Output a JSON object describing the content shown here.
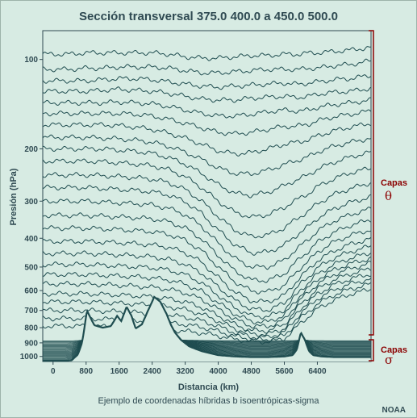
{
  "chart_data": {
    "type": "line",
    "title": "Sección transversal 375.0 400.0 a 450.0 500.0",
    "xlabel": "Distancia (km)",
    "ylabel": "Presión (hPa)",
    "caption": "Ejemplo de coordenadas híbridas b isoentrópicas-sigma",
    "credit": "NOAA",
    "xlim": [
      -250,
      7700
    ],
    "ylim": [
      1040,
      80
    ],
    "y_scale": "log",
    "x_ticks": [
      "0",
      "800",
      "1600",
      "2400",
      "3200",
      "4000",
      "4800",
      "5600",
      "6400"
    ],
    "y_ticks": [
      "100",
      "200",
      "300",
      "400",
      "500",
      "600",
      "700",
      "800",
      "900",
      "1000"
    ],
    "layer_groups": [
      {
        "label": "Capas",
        "symbol": "θ",
        "color": "#8b0000"
      },
      {
        "label": "Capas",
        "symbol": "σ",
        "color": "#8b0000"
      }
    ],
    "line_color": "#1f4d50",
    "terrain": {
      "x": [
        -250,
        300,
        450,
        600,
        700,
        820,
        1000,
        1200,
        1400,
        1550,
        1650,
        1780,
        1900,
        2000,
        2150,
        2300,
        2450,
        2600,
        2750,
        2850,
        2950,
        3100,
        3300,
        3600,
        4000,
        4400,
        4800,
        5200,
        5600,
        5800,
        5900,
        6000,
        6100,
        6200,
        6300,
        6500,
        6800,
        7100,
        7400,
        7700
      ],
      "pressure": [
        1035,
        1035,
        1030,
        985,
        900,
        700,
        785,
        800,
        790,
        730,
        760,
        680,
        730,
        805,
        780,
        700,
        630,
        655,
        720,
        780,
        830,
        880,
        925,
        960,
        990,
        1000,
        1005,
        1005,
        1000,
        990,
        950,
        830,
        880,
        960,
        990,
        1000,
        1005,
        1005,
        1005,
        1005
      ]
    },
    "theta_layers": {
      "x": [
        -250,
        400,
        800,
        1200,
        1600,
        2000,
        2400,
        2800,
        3200,
        3600,
        4000,
        4400,
        4800,
        5200,
        5600,
        5800,
        6000,
        6200,
        6400,
        6800,
        7200,
        7700
      ],
      "levels": [
        [
          96,
          96,
          95,
          95,
          95,
          95,
          95,
          96,
          98,
          99,
          99,
          98,
          97,
          97,
          96,
          96,
          96,
          95,
          95,
          94,
          93,
          91
        ],
        [
          108,
          108,
          107,
          107,
          106,
          106,
          106,
          107,
          109,
          111,
          111,
          110,
          109,
          108,
          108,
          108,
          108,
          107,
          107,
          105,
          104,
          101
        ],
        [
          118,
          118,
          118,
          117,
          116,
          116,
          117,
          119,
          121,
          123,
          124,
          123,
          122,
          121,
          120,
          121,
          121,
          120,
          119,
          117,
          116,
          113
        ],
        [
          128,
          128,
          128,
          127,
          126,
          127,
          128,
          130,
          133,
          136,
          137,
          137,
          135,
          134,
          133,
          134,
          134,
          133,
          131,
          129,
          128,
          125
        ],
        [
          140,
          140,
          140,
          140,
          139,
          140,
          141,
          144,
          148,
          152,
          155,
          155,
          153,
          150,
          148,
          149,
          149,
          148,
          145,
          142,
          140,
          137
        ],
        [
          152,
          152,
          152,
          152,
          152,
          153,
          155,
          159,
          164,
          170,
          176,
          178,
          176,
          172,
          168,
          168,
          167,
          165,
          161,
          156,
          153,
          149
        ],
        [
          166,
          166,
          166,
          166,
          167,
          169,
          172,
          177,
          184,
          193,
          203,
          208,
          206,
          200,
          193,
          191,
          189,
          186,
          181,
          174,
          169,
          164
        ],
        [
          183,
          183,
          183,
          184,
          185,
          187,
          190,
          196,
          205,
          217,
          232,
          242,
          243,
          236,
          226,
          221,
          217,
          212,
          205,
          196,
          190,
          184
        ],
        [
          200,
          200,
          200,
          200,
          202,
          204,
          207,
          214,
          225,
          242,
          264,
          282,
          287,
          280,
          266,
          258,
          251,
          244,
          234,
          222,
          213,
          205
        ],
        [
          220,
          220,
          220,
          221,
          223,
          225,
          228,
          235,
          248,
          270,
          300,
          327,
          340,
          333,
          315,
          302,
          292,
          282,
          268,
          252,
          241,
          232
        ],
        [
          245,
          245,
          245,
          246,
          248,
          250,
          253,
          260,
          274,
          300,
          338,
          375,
          395,
          390,
          369,
          352,
          337,
          323,
          306,
          285,
          272,
          260
        ],
        [
          270,
          270,
          270,
          272,
          274,
          276,
          279,
          286,
          301,
          330,
          375,
          420,
          448,
          445,
          422,
          400,
          381,
          364,
          343,
          318,
          303,
          290
        ],
        [
          300,
          300,
          300,
          302,
          304,
          306,
          309,
          317,
          333,
          364,
          415,
          467,
          500,
          500,
          474,
          447,
          423,
          402,
          378,
          350,
          333,
          318
        ],
        [
          335,
          335,
          335,
          337,
          339,
          341,
          344,
          352,
          369,
          402,
          457,
          515,
          553,
          555,
          527,
          494,
          464,
          440,
          413,
          382,
          362,
          346
        ],
        [
          370,
          370,
          370,
          372,
          374,
          377,
          380,
          388,
          406,
          440,
          498,
          560,
          602,
          606,
          576,
          537,
          502,
          475,
          445,
          412,
          391,
          374
        ],
        [
          410,
          410,
          410,
          412,
          414,
          417,
          421,
          429,
          447,
          482,
          542,
          606,
          650,
          655,
          622,
          578,
          538,
          508,
          476,
          441,
          419,
          401
        ],
        [
          450,
          450,
          450,
          452,
          455,
          458,
          462,
          471,
          489,
          524,
          583,
          647,
          693,
          698,
          662,
          613,
          568,
          537,
          503,
          466,
          444,
          425
        ],
        [
          490,
          490,
          490,
          493,
          496,
          499,
          503,
          512,
          530,
          565,
          622,
          685,
          730,
          735,
          697,
          644,
          595,
          563,
          528,
          490,
          467,
          447
        ],
        [
          530,
          530,
          530,
          533,
          536,
          539,
          544,
          553,
          571,
          604,
          659,
          719,
          762,
          766,
          726,
          670,
          619,
          586,
          550,
          511,
          487,
          467
        ],
        [
          570,
          570,
          570,
          573,
          576,
          580,
          585,
          594,
          611,
          642,
          693,
          749,
          790,
          793,
          753,
          694,
          641,
          607,
          570,
          530,
          506,
          485
        ],
        [
          615,
          615,
          615,
          618,
          621,
          625,
          630,
          639,
          655,
          683,
          729,
          780,
          818,
          820,
          780,
          720,
          665,
          631,
          593,
          552,
          527,
          506
        ],
        [
          655,
          655,
          655,
          658,
          662,
          666,
          672,
          680,
          695,
          720,
          760,
          806,
          840,
          842,
          805,
          745,
          689,
          654,
          616,
          574,
          548,
          527
        ],
        [
          700,
          700,
          700,
          703,
          707,
          711,
          717,
          725,
          738,
          758,
          792,
          831,
          860,
          862,
          828,
          770,
          714,
          678,
          640,
          597,
          570,
          548
        ],
        [
          745,
          745,
          745,
          748,
          752,
          756,
          762,
          770,
          781,
          797,
          823,
          854,
          877,
          879,
          850,
          796,
          741,
          704,
          665,
          621,
          593,
          570
        ],
        [
          790,
          790,
          790,
          793,
          797,
          801,
          806,
          813,
          822,
          834,
          852,
          875,
          892,
          894,
          870,
          823,
          770,
          732,
          692,
          646,
          617,
          593
        ]
      ]
    },
    "sigma_layer_count": 22,
    "sigma_top": 880
  }
}
